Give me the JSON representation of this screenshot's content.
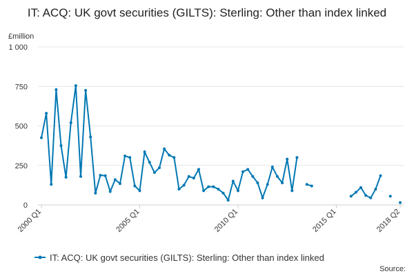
{
  "chart_data": {
    "type": "line",
    "title": "IT: ACQ: UK govt securities (GILTS): Sterling: Other than index linked",
    "y_unit": "£million",
    "source": "Source:",
    "categories": [
      "2000 Q1",
      null,
      null,
      null,
      null,
      null,
      null,
      null,
      null,
      null,
      null,
      null,
      null,
      null,
      null,
      null,
      null,
      null,
      null,
      null,
      "2005 Q1",
      null,
      null,
      null,
      null,
      null,
      null,
      null,
      null,
      null,
      null,
      null,
      null,
      null,
      null,
      null,
      null,
      null,
      null,
      null,
      "2010 Q1",
      null,
      null,
      null,
      null,
      null,
      null,
      null,
      null,
      null,
      null,
      null,
      null,
      null,
      null,
      null,
      null,
      null,
      null,
      null,
      "2015 Q1",
      null,
      null,
      null,
      null,
      null,
      null,
      null,
      null,
      null,
      null,
      null,
      null,
      "2018 Q2"
    ],
    "series": [
      {
        "name": "IT: ACQ: UK govt securities (GILTS): Sterling: Other than index linked",
        "color": "#0077b3",
        "values": [
          425,
          580,
          130,
          730,
          375,
          175,
          520,
          755,
          180,
          725,
          430,
          75,
          188,
          185,
          85,
          160,
          135,
          310,
          300,
          120,
          90,
          335,
          270,
          205,
          235,
          355,
          315,
          300,
          100,
          125,
          180,
          170,
          225,
          90,
          115,
          115,
          100,
          75,
          30,
          150,
          90,
          210,
          225,
          180,
          140,
          45,
          130,
          240,
          180,
          140,
          290,
          90,
          300,
          null,
          130,
          120,
          null,
          null,
          null,
          null,
          null,
          null,
          null,
          55,
          80,
          110,
          60,
          45,
          100,
          185,
          null,
          55,
          null,
          15
        ]
      }
    ],
    "ylim": [
      0,
      1000
    ],
    "yticks": [
      0,
      250,
      500,
      750,
      {
        "value": 1000,
        "label": "1 000"
      }
    ],
    "grid": true
  }
}
